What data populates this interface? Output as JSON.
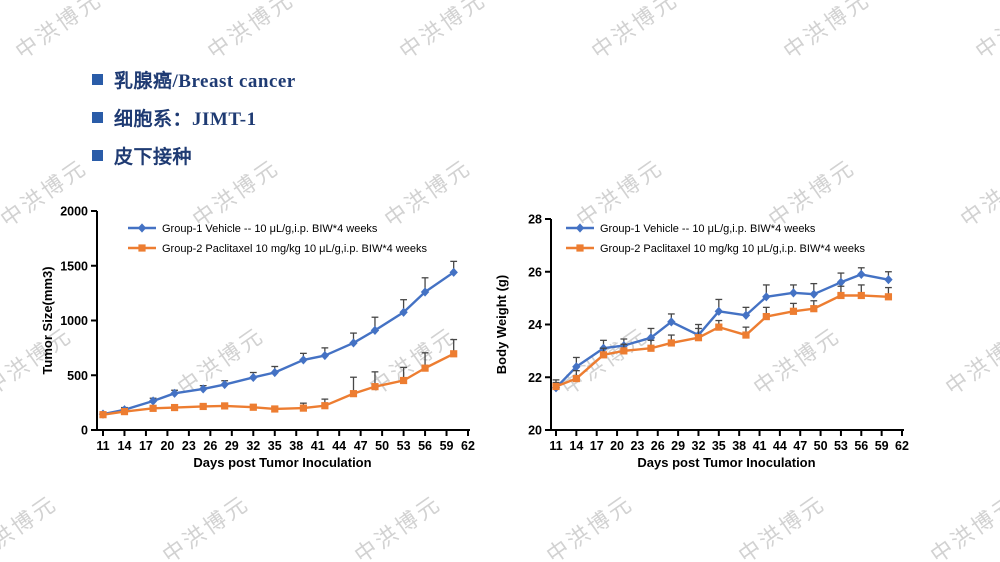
{
  "watermark": {
    "text": "中洪博元",
    "color": "#d2d2d2"
  },
  "header": {
    "text_color": "#1f3b73",
    "bullet_color": "#2a5ca8",
    "items": [
      {
        "label": "乳腺癌/Breast cancer"
      },
      {
        "label": "细胞系：JIMT-1"
      },
      {
        "label": "皮下接种"
      }
    ]
  },
  "chart_data": [
    {
      "type": "line",
      "title": "",
      "xlabel": "Days post Tumor Inoculation",
      "ylabel": "Tumor Size(mm3)",
      "xlim": [
        11,
        62
      ],
      "ylim": [
        0,
        2000
      ],
      "xticks": [
        11,
        14,
        17,
        20,
        23,
        26,
        29,
        32,
        35,
        38,
        41,
        44,
        47,
        50,
        53,
        56,
        59,
        62
      ],
      "yticks": [
        0,
        500,
        1000,
        1500,
        2000
      ],
      "grid": false,
      "legend_position": "top-left-inside",
      "error_bars": "upward",
      "error_bar_color": "#474747",
      "x": [
        11,
        14,
        18,
        21,
        25,
        28,
        32,
        35,
        39,
        42,
        46,
        49,
        53,
        56,
        60
      ],
      "series": [
        {
          "name": "Group-1 Vehicle -- 10 μL/g,i.p. BIW*4 weeks",
          "color": "#4472C4",
          "marker": "diamond",
          "values": [
            145,
            185,
            265,
            335,
            375,
            415,
            480,
            525,
            640,
            680,
            795,
            910,
            1075,
            1260,
            1440
          ],
          "errors": [
            18,
            20,
            25,
            28,
            30,
            35,
            45,
            55,
            60,
            70,
            90,
            120,
            115,
            130,
            100
          ]
        },
        {
          "name": "Group-2 Paclitaxel 10 mg/kg 10 μL/g,i.p. BIW*4 weeks",
          "color": "#ED7D31",
          "marker": "square",
          "values": [
            140,
            168,
            198,
            205,
            215,
            220,
            208,
            192,
            200,
            222,
            332,
            396,
            452,
            565,
            696
          ],
          "errors": [
            12,
            12,
            15,
            15,
            15,
            15,
            18,
            18,
            45,
            60,
            150,
            135,
            120,
            140,
            130
          ]
        }
      ]
    },
    {
      "type": "line",
      "title": "",
      "xlabel": "Days post Tumor Inoculation",
      "ylabel": "Body Weight (g)",
      "xlim": [
        11,
        62
      ],
      "ylim": [
        20,
        28
      ],
      "xticks": [
        11,
        14,
        17,
        20,
        23,
        26,
        29,
        32,
        35,
        38,
        41,
        44,
        47,
        50,
        53,
        56,
        59,
        62
      ],
      "yticks": [
        20,
        22,
        24,
        26,
        28
      ],
      "grid": false,
      "legend_position": "top-left-inside",
      "error_bars": "upward",
      "error_bar_color": "#474747",
      "x": [
        11,
        14,
        18,
        21,
        25,
        28,
        32,
        35,
        39,
        42,
        46,
        49,
        53,
        56,
        60
      ],
      "series": [
        {
          "name": "Group-1 Vehicle -- 10 μL/g,i.p. BIW*4 weeks",
          "color": "#4472C4",
          "marker": "diamond",
          "values": [
            21.6,
            22.4,
            23.1,
            23.2,
            23.5,
            24.1,
            23.6,
            24.5,
            24.35,
            25.05,
            25.2,
            25.15,
            25.6,
            25.9,
            25.7
          ],
          "errors": [
            0.2,
            0.35,
            0.3,
            0.25,
            0.35,
            0.3,
            0.4,
            0.45,
            0.3,
            0.45,
            0.3,
            0.4,
            0.35,
            0.25,
            0.3
          ]
        },
        {
          "name": "Group-2 Paclitaxel 10 mg/kg 10 μL/g,i.p. BIW*4 weeks",
          "color": "#ED7D31",
          "marker": "square",
          "values": [
            21.65,
            21.95,
            22.85,
            23.0,
            23.1,
            23.3,
            23.5,
            23.9,
            23.6,
            24.3,
            24.5,
            24.6,
            25.1,
            25.1,
            25.05
          ],
          "errors": [
            0.25,
            0.3,
            0.25,
            0.25,
            0.3,
            0.3,
            0.35,
            0.25,
            0.3,
            0.35,
            0.3,
            0.3,
            0.35,
            0.4,
            0.35
          ]
        }
      ]
    }
  ]
}
